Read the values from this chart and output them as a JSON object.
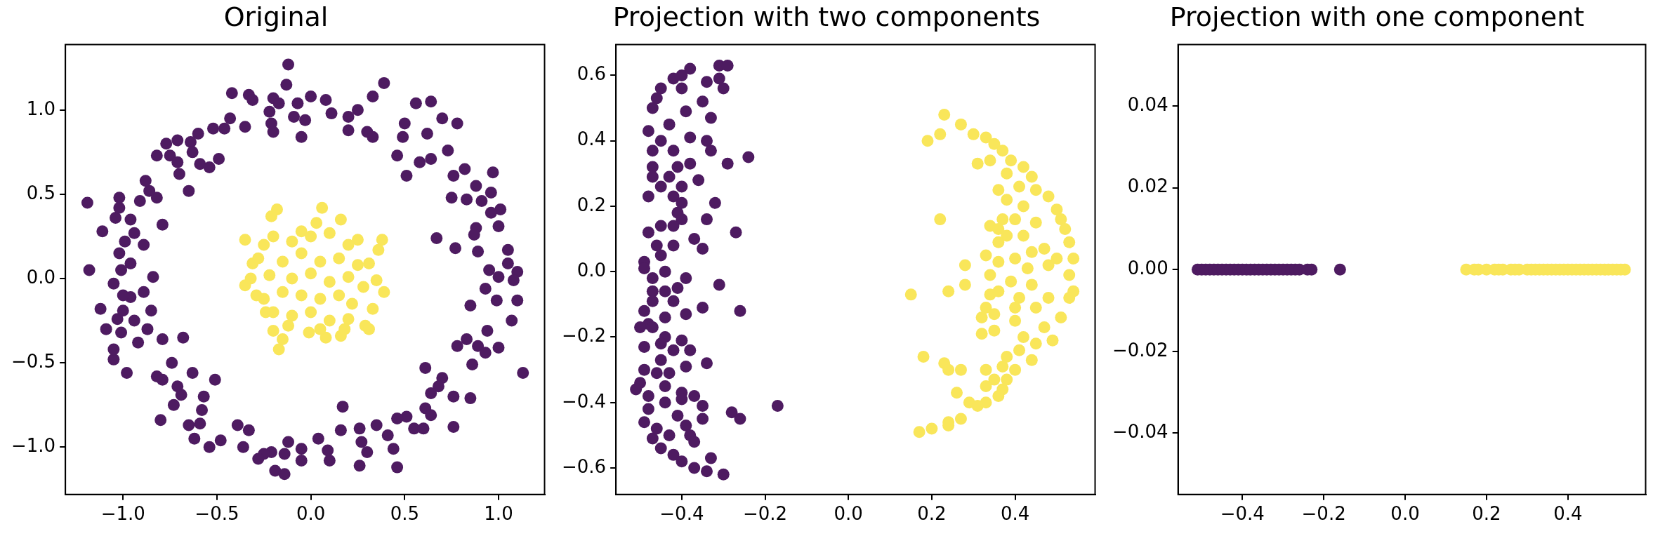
{
  "chart_data": [
    {
      "type": "scatter",
      "title": "Original",
      "marker": "circle",
      "xlim": [
        -1.307,
        1.245
      ],
      "ylim": [
        -1.281,
        1.388
      ],
      "xticks": [
        {
          "value": -1,
          "label": "−1.0"
        },
        {
          "value": -0.5,
          "label": "−0.5"
        },
        {
          "value": 0,
          "label": "0.0"
        },
        0.5,
        {
          "value": 1,
          "label": "1.0"
        }
      ],
      "yticks": [
        {
          "value": -1,
          "label": "−1.0"
        },
        {
          "value": -0.5,
          "label": "−0.5"
        },
        {
          "value": 0,
          "label": "0.0"
        },
        0.5,
        {
          "value": 1,
          "label": "1.0"
        }
      ],
      "series": [
        {
          "color": "#4e1b61",
          "x": [
            -0.12,
            -0.13,
            0.39,
            -0.42,
            -0.33,
            -0.31,
            -0.2,
            -0.17,
            -0.22,
            -0.07,
            0,
            0.08,
            0.11,
            0.2,
            0.25,
            0.33,
            0.56,
            0.64,
            0.7,
            0.78,
            0.5,
            0.49,
            0.62,
            0.73,
            0.46,
            0.58,
            0.64,
            0.51,
            0.82,
            0.97,
            0.76,
            0.88,
            0.96,
            0.75,
            0.83,
            0.91,
            1.01,
            0.96,
            0.88,
            1,
            0.87,
            0.67,
            0.77,
            0.89,
            1.05,
            1.05,
            0.95,
            1.1,
            1,
            0.93,
            1.08,
            0.99,
            1.1,
            0.85,
            1.07,
            0.94,
            0.78,
            0.83,
            0.89,
            1,
            0.93,
            0.86,
            1.13,
            0.61,
            0.7,
            0.68,
            0.64,
            0.76,
            0.85,
            0.61,
            0.64,
            0.51,
            0.46,
            0.55,
            0.76,
            0.6,
            0.35,
            0.41,
            0.26,
            0.27,
            0.3,
            0.26,
            0.44,
            0.46,
            0.16,
            0.17,
            0.04,
            0.09,
            0.1,
            -0.05,
            -0.05,
            -0.12,
            -0.14,
            -0.14,
            -0.19,
            -0.21,
            -0.25,
            -0.28,
            -0.33,
            -0.36,
            -0.39,
            -0.48,
            -0.54,
            -0.62,
            -0.59,
            -0.65,
            -0.58,
            -0.57,
            -0.8,
            -0.73,
            -0.69,
            -0.71,
            -0.51,
            -0.63,
            -0.79,
            -0.82,
            -0.74,
            -0.68,
            -0.79,
            -0.98,
            -1.05,
            -1.05,
            -0.92,
            -0.87,
            -0.94,
            -1.01,
            -1.09,
            -1.03,
            -1.12,
            -1,
            -0.85,
            -0.96,
            -0.89,
            -1,
            -1.05,
            -0.84,
            -1.01,
            -0.96,
            -1.18,
            -1.02,
            -0.99,
            -0.94,
            -0.89,
            -1.11,
            -0.79,
            -0.96,
            -1.04,
            -1.02,
            -1.02,
            -1.19,
            -0.91,
            -0.82,
            -0.86,
            -0.88,
            -0.65,
            -0.82,
            -0.75,
            -0.71,
            -0.7,
            -0.77,
            -0.71,
            -0.64,
            -0.63,
            -0.59,
            -0.54,
            -0.49,
            -0.6,
            -0.52,
            -0.43,
            -0.46,
            -0.35,
            -0.21,
            -0.2,
            -0.05,
            -0.03,
            -0.09,
            0.2,
            0.3,
            0.33
          ],
          "values": [
            1.27,
            1.15,
            1.16,
            1.1,
            1.09,
            1.06,
            1.07,
            1.04,
            0.99,
            1.04,
            1.08,
            1.06,
            0.98,
            0.96,
            1,
            1.08,
            1.04,
            1.05,
            0.95,
            0.92,
            0.92,
            0.84,
            0.86,
            0.76,
            0.73,
            0.69,
            0.71,
            0.61,
            0.65,
            0.63,
            0.61,
            0.55,
            0.51,
            0.48,
            0.47,
            0.46,
            0.41,
            0.39,
            0.3,
            0.31,
            0.26,
            0.24,
            0.18,
            0.16,
            0.17,
            0.09,
            0.05,
            0.04,
            0.01,
            -0.06,
            -0.01,
            -0.13,
            -0.13,
            -0.16,
            -0.25,
            -0.31,
            -0.4,
            -0.36,
            -0.4,
            -0.41,
            -0.44,
            -0.51,
            -0.56,
            -0.53,
            -0.59,
            -0.64,
            -0.68,
            -0.7,
            -0.71,
            -0.77,
            -0.81,
            -0.82,
            -0.83,
            -0.89,
            -0.88,
            -0.89,
            -0.87,
            -0.93,
            -0.89,
            -0.97,
            -1.03,
            -1.11,
            -1.01,
            -1.12,
            -0.9,
            -0.76,
            -0.95,
            -1.02,
            -1.08,
            -1.01,
            -1.08,
            -0.97,
            -1.04,
            -1.16,
            -1.14,
            -1.03,
            -1.04,
            -1.07,
            -0.9,
            -1,
            -0.87,
            -0.96,
            -1,
            -0.95,
            -0.86,
            -0.87,
            -0.78,
            -0.7,
            -0.84,
            -0.75,
            -0.69,
            -0.64,
            -0.6,
            -0.56,
            -0.6,
            -0.58,
            -0.5,
            -0.35,
            -0.36,
            -0.56,
            -0.48,
            -0.42,
            -0.38,
            -0.3,
            -0.25,
            -0.32,
            -0.3,
            -0.24,
            -0.18,
            -0.19,
            -0.19,
            -0.11,
            -0.08,
            -0.1,
            -0.03,
            0.01,
            0.05,
            0.09,
            0.05,
            0.15,
            0.22,
            0.27,
            0.2,
            0.28,
            0.32,
            0.35,
            0.36,
            0.42,
            0.48,
            0.45,
            0.46,
            0.48,
            0.52,
            0.58,
            0.52,
            0.73,
            0.73,
            0.69,
            0.62,
            0.8,
            0.82,
            0.81,
            0.75,
            0.68,
            0.66,
            0.71,
            0.86,
            0.89,
            0.95,
            0.89,
            0.9,
            0.92,
            0.87,
            0.84,
            0.94,
            0.96,
            0.88,
            0.87,
            0.84
          ]
        },
        {
          "color": "#f9e65a",
          "x": [
            -0.18,
            -0.21,
            0.06,
            0.16,
            0.03,
            -0.05,
            -0.35,
            0.38,
            0.36,
            0.25,
            -0.31,
            -0.35,
            -0.32,
            0.31,
            0.35,
            0.39,
            0.33,
            0.29,
            0.31,
            -0.17,
            -0.15,
            -0.2,
            -0.01,
            0.08,
            0.16,
            -0.24,
            -0.29,
            -0.25,
            -0.2,
            -0.1,
            0,
            0.1,
            0.2,
            -0.28,
            -0.15,
            -0.05,
            0.05,
            0.15,
            0.25,
            -0.22,
            -0.1,
            0,
            0.1,
            0.2,
            0.28,
            -0.25,
            -0.15,
            -0.05,
            0.05,
            0.15,
            0.22,
            -0.2,
            -0.1,
            0,
            0.1,
            0.2,
            -0.12,
            0.05,
            0.18
          ],
          "values": [
            0.41,
            0.37,
            0.42,
            0.35,
            0.33,
            0.28,
            0.23,
            0.23,
            0.17,
            0.23,
            0.09,
            -0.04,
            0,
            0.09,
            -0.01,
            -0.08,
            -0.18,
            -0.28,
            -0.3,
            -0.42,
            -0.36,
            -0.31,
            -0.32,
            -0.35,
            -0.34,
            -0.2,
            -0.1,
            0.2,
            0.25,
            0.22,
            0.25,
            0.27,
            0.2,
            0.12,
            0.1,
            0.15,
            0.1,
            0.12,
            0.08,
            0.02,
            0,
            0.03,
            -0.02,
            0.01,
            -0.05,
            -0.12,
            -0.08,
            -0.1,
            -0.12,
            -0.1,
            -0.15,
            -0.2,
            -0.22,
            -0.2,
            -0.25,
            -0.24,
            -0.28,
            -0.3,
            -0.3
          ]
        }
      ]
    },
    {
      "type": "scatter",
      "title": "Projection with two components",
      "marker": "circle",
      "xlim": [
        -0.558,
        0.592
      ],
      "ylim": [
        -0.681,
        0.694
      ],
      "xticks": [
        {
          "value": -0.4,
          "label": "−0.4"
        },
        {
          "value": -0.2,
          "label": "−0.2"
        },
        {
          "value": 0,
          "label": "0.0"
        },
        0.2,
        0.4
      ],
      "yticks": [
        {
          "value": -0.6,
          "label": "−0.6"
        },
        {
          "value": -0.4,
          "label": "−0.4"
        },
        {
          "value": -0.2,
          "label": "−0.2"
        },
        {
          "value": 0,
          "label": "0.0"
        },
        0.2,
        0.4,
        0.6
      ],
      "series": [
        {
          "color": "#4e1b61",
          "x": [
            -0.31,
            -0.29,
            -0.31,
            -0.3,
            -0.38,
            -0.34,
            -0.4,
            -0.42,
            -0.45,
            -0.46,
            -0.47,
            -0.4,
            -0.35,
            -0.33,
            -0.39,
            -0.43,
            -0.48,
            -0.45,
            -0.38,
            -0.34,
            -0.33,
            -0.42,
            -0.47,
            -0.24,
            -0.29,
            -0.38,
            -0.41,
            -0.47,
            -0.47,
            -0.43,
            -0.36,
            -0.4,
            -0.45,
            -0.48,
            -0.42,
            -0.4,
            -0.32,
            -0.41,
            -0.4,
            -0.34,
            -0.45,
            -0.42,
            -0.48,
            -0.27,
            -0.37,
            -0.46,
            -0.42,
            -0.35,
            -0.45,
            -0.49,
            -0.49,
            -0.44,
            -0.39,
            -0.47,
            -0.41,
            -0.31,
            -0.47,
            -0.44,
            -0.47,
            -0.42,
            -0.35,
            -0.26,
            -0.39,
            -0.44,
            -0.49,
            -0.48,
            -0.47,
            -0.5,
            -0.44,
            -0.4,
            -0.49,
            -0.45,
            -0.42,
            -0.38,
            -0.45,
            -0.34,
            -0.49,
            -0.39,
            -0.46,
            -0.43,
            -0.5,
            -0.44,
            -0.51,
            -0.4,
            -0.48,
            -0.37,
            -0.4,
            -0.44,
            -0.17,
            -0.35,
            -0.48,
            -0.28,
            -0.41,
            -0.35,
            -0.26,
            -0.49,
            -0.39,
            -0.46,
            -0.43,
            -0.38,
            -0.47,
            -0.37,
            -0.45,
            -0.42,
            -0.33,
            -0.4,
            -0.37,
            -0.34,
            -0.3
          ],
          "values": [
            0.63,
            0.63,
            0.59,
            0.56,
            0.62,
            0.58,
            0.6,
            0.59,
            0.56,
            0.53,
            0.5,
            0.56,
            0.52,
            0.47,
            0.49,
            0.45,
            0.43,
            0.4,
            0.41,
            0.4,
            0.37,
            0.37,
            0.37,
            0.35,
            0.33,
            0.33,
            0.32,
            0.32,
            0.29,
            0.29,
            0.28,
            0.26,
            0.26,
            0.23,
            0.23,
            0.21,
            0.21,
            0.18,
            0.16,
            0.16,
            0.14,
            0.14,
            0.12,
            0.12,
            0.1,
            0.08,
            0.08,
            0.07,
            0.05,
            0.03,
            0.01,
            0,
            -0.02,
            -0.02,
            -0.05,
            -0.04,
            -0.06,
            -0.06,
            -0.09,
            -0.09,
            -0.11,
            -0.12,
            -0.13,
            -0.14,
            -0.12,
            -0.16,
            -0.17,
            -0.17,
            -0.2,
            -0.21,
            -0.23,
            -0.22,
            -0.24,
            -0.24,
            -0.27,
            -0.28,
            -0.3,
            -0.29,
            -0.31,
            -0.31,
            -0.34,
            -0.35,
            -0.36,
            -0.37,
            -0.38,
            -0.38,
            -0.39,
            -0.4,
            -0.41,
            -0.41,
            -0.42,
            -0.43,
            -0.44,
            -0.45,
            -0.45,
            -0.46,
            -0.47,
            -0.48,
            -0.5,
            -0.5,
            -0.51,
            -0.52,
            -0.54,
            -0.56,
            -0.57,
            -0.58,
            -0.6,
            -0.61,
            -0.62
          ]
        },
        {
          "color": "#f9e65a",
          "x": [
            0.23,
            0.27,
            0.19,
            0.22,
            0.3,
            0.33,
            0.35,
            0.37,
            0.31,
            0.34,
            0.39,
            0.42,
            0.38,
            0.44,
            0.36,
            0.41,
            0.45,
            0.48,
            0.38,
            0.42,
            0.5,
            0.51,
            0.22,
            0.37,
            0.4,
            0.45,
            0.34,
            0.36,
            0.42,
            0.38,
            0.52,
            0.53,
            0.36,
            0.47,
            0.33,
            0.4,
            0.44,
            0.5,
            0.54,
            0.36,
            0.28,
            0.43,
            0.48,
            0.34,
            0.53,
            0.39,
            0.28,
            0.44,
            0.24,
            0.15,
            0.34,
            0.36,
            0.54,
            0.41,
            0.48,
            0.53,
            0.33,
            0.4,
            0.45,
            0.32,
            0.35,
            0.4,
            0.51,
            0.47,
            0.32,
            0.35,
            0.42,
            0.49,
            0.45,
            0.41,
            0.18,
            0.38,
            0.44,
            0.23,
            0.24,
            0.27,
            0.33,
            0.37,
            0.4,
            0.35,
            0.38,
            0.33,
            0.37,
            0.26,
            0.36,
            0.29,
            0.31,
            0.33,
            0.24,
            0.27,
            0.24,
            0.2,
            0.17
          ],
          "values": [
            0.48,
            0.45,
            0.4,
            0.42,
            0.42,
            0.41,
            0.39,
            0.37,
            0.33,
            0.34,
            0.34,
            0.32,
            0.3,
            0.29,
            0.25,
            0.26,
            0.25,
            0.23,
            0.22,
            0.2,
            0.19,
            0.16,
            0.16,
            0.16,
            0.16,
            0.15,
            0.14,
            0.13,
            0.11,
            0.11,
            0.13,
            0.09,
            0.09,
            0.07,
            0.05,
            0.04,
            0.06,
            0.04,
            0.04,
            0.03,
            0.02,
            0.01,
            0.02,
            -0.01,
            -0.01,
            -0.03,
            -0.04,
            -0.04,
            -0.06,
            -0.07,
            -0.07,
            -0.06,
            -0.06,
            -0.08,
            -0.08,
            -0.08,
            -0.11,
            -0.11,
            -0.11,
            -0.14,
            -0.13,
            -0.15,
            -0.14,
            -0.17,
            -0.19,
            -0.18,
            -0.2,
            -0.21,
            -0.22,
            -0.24,
            -0.26,
            -0.26,
            -0.27,
            -0.28,
            -0.3,
            -0.3,
            -0.3,
            -0.29,
            -0.3,
            -0.33,
            -0.33,
            -0.35,
            -0.36,
            -0.37,
            -0.38,
            -0.4,
            -0.41,
            -0.4,
            -0.46,
            -0.45,
            -0.47,
            -0.48,
            -0.49
          ]
        }
      ]
    },
    {
      "type": "scatter",
      "title": "Projection with one component",
      "marker": "circle",
      "xlim": [
        -0.558,
        0.591
      ],
      "ylim": [
        -0.055,
        0.055
      ],
      "xticks": [
        {
          "value": -0.4,
          "label": "−0.4"
        },
        {
          "value": -0.2,
          "label": "−0.2"
        },
        {
          "value": 0,
          "label": "0.0"
        },
        0.2,
        0.4
      ],
      "yticks": [
        {
          "value": -0.04,
          "label": "−0.04"
        },
        {
          "value": -0.02,
          "label": "−0.02"
        },
        {
          "value": 0,
          "label": "0.00"
        },
        0.02,
        0.04
      ],
      "series": [
        {
          "color": "#4e1b61",
          "x": [
            -0.51,
            -0.5,
            -0.49,
            -0.48,
            -0.47,
            -0.46,
            -0.45,
            -0.44,
            -0.43,
            -0.42,
            -0.41,
            -0.4,
            -0.39,
            -0.38,
            -0.37,
            -0.36,
            -0.35,
            -0.34,
            -0.33,
            -0.32,
            -0.31,
            -0.3,
            -0.29,
            -0.28,
            -0.27,
            -0.26,
            -0.24,
            -0.23,
            -0.16
          ],
          "values": [
            0,
            0,
            0,
            0,
            0,
            0,
            0,
            0,
            0,
            0,
            0,
            0,
            0,
            0,
            0,
            0,
            0,
            0,
            0,
            0,
            0,
            0,
            0,
            0,
            0,
            0,
            0,
            0,
            0
          ]
        },
        {
          "color": "#f9e65a",
          "x": [
            0.15,
            0.17,
            0.18,
            0.2,
            0.22,
            0.23,
            0.24,
            0.26,
            0.27,
            0.28,
            0.3,
            0.31,
            0.32,
            0.33,
            0.34,
            0.35,
            0.36,
            0.37,
            0.38,
            0.39,
            0.4,
            0.41,
            0.42,
            0.43,
            0.44,
            0.45,
            0.46,
            0.47,
            0.48,
            0.49,
            0.5,
            0.51,
            0.52,
            0.53,
            0.54
          ],
          "values": [
            0,
            0,
            0,
            0,
            0,
            0,
            0,
            0,
            0,
            0,
            0,
            0,
            0,
            0,
            0,
            0,
            0,
            0,
            0,
            0,
            0,
            0,
            0,
            0,
            0,
            0,
            0,
            0,
            0,
            0,
            0,
            0,
            0,
            0,
            0
          ]
        }
      ]
    }
  ]
}
